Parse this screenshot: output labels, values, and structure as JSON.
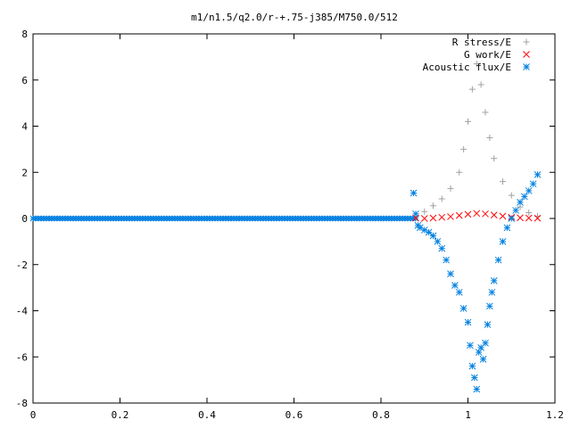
{
  "chart_data": {
    "type": "scatter",
    "title": "m1/n1.5/q2.0/r-+.75-j385/M750.0/512",
    "xlabel": "",
    "ylabel": "",
    "xlim": [
      0,
      1.2
    ],
    "ylim": [
      -8,
      8
    ],
    "x_ticks": [
      "0",
      "0.2",
      "0.4",
      "0.6",
      "0.8",
      "1",
      "1.2"
    ],
    "y_ticks": [
      "8",
      "6",
      "4",
      "2",
      "0",
      "-2",
      "-4",
      "-6",
      "-8"
    ],
    "grid": false,
    "legend_position": "top-right",
    "series": [
      {
        "name": "R stress/E",
        "marker": "plus",
        "color": "#a0a0a0",
        "points": [
          [
            0.88,
            0.1
          ],
          [
            0.9,
            0.3
          ],
          [
            0.92,
            0.55
          ],
          [
            0.94,
            0.85
          ],
          [
            0.96,
            1.3
          ],
          [
            0.98,
            2.0
          ],
          [
            0.99,
            3.0
          ],
          [
            1.0,
            4.2
          ],
          [
            1.01,
            5.6
          ],
          [
            1.02,
            6.7
          ],
          [
            1.03,
            5.8
          ],
          [
            1.04,
            4.6
          ],
          [
            1.05,
            3.5
          ],
          [
            1.06,
            2.6
          ],
          [
            1.08,
            1.6
          ],
          [
            1.1,
            1.0
          ],
          [
            1.12,
            0.5
          ],
          [
            1.14,
            0.25
          ],
          [
            1.16,
            0.1
          ]
        ]
      },
      {
        "name": "G work/E",
        "marker": "cross",
        "color": "#ff0000",
        "points": [
          [
            0.88,
            0.02
          ],
          [
            0.9,
            0.0
          ],
          [
            0.92,
            0.02
          ],
          [
            0.94,
            0.05
          ],
          [
            0.96,
            0.08
          ],
          [
            0.98,
            0.13
          ],
          [
            1.0,
            0.18
          ],
          [
            1.02,
            0.22
          ],
          [
            1.04,
            0.2
          ],
          [
            1.06,
            0.15
          ],
          [
            1.08,
            0.1
          ],
          [
            1.1,
            0.05
          ],
          [
            1.12,
            0.03
          ],
          [
            1.14,
            0.02
          ],
          [
            1.16,
            0.01
          ]
        ]
      },
      {
        "name": "Acoustic flux/E",
        "marker": "star",
        "color": "#0080e0",
        "points": [
          [
            0.875,
            1.1
          ],
          [
            0.88,
            0.2
          ],
          [
            0.885,
            -0.3
          ],
          [
            0.89,
            -0.4
          ],
          [
            0.9,
            -0.5
          ],
          [
            0.91,
            -0.6
          ],
          [
            0.92,
            -0.75
          ],
          [
            0.93,
            -1.0
          ],
          [
            0.94,
            -1.3
          ],
          [
            0.95,
            -1.8
          ],
          [
            0.96,
            -2.4
          ],
          [
            0.97,
            -2.9
          ],
          [
            0.98,
            -3.2
          ],
          [
            0.99,
            -3.9
          ],
          [
            1.0,
            -4.5
          ],
          [
            1.005,
            -5.5
          ],
          [
            1.01,
            -6.4
          ],
          [
            1.015,
            -6.9
          ],
          [
            1.02,
            -7.4
          ],
          [
            1.025,
            -5.8
          ],
          [
            1.03,
            -5.6
          ],
          [
            1.035,
            -6.1
          ],
          [
            1.04,
            -5.4
          ],
          [
            1.045,
            -4.6
          ],
          [
            1.05,
            -3.8
          ],
          [
            1.055,
            -3.2
          ],
          [
            1.06,
            -2.7
          ],
          [
            1.07,
            -1.8
          ],
          [
            1.08,
            -1.0
          ],
          [
            1.09,
            -0.4
          ],
          [
            1.1,
            0.0
          ],
          [
            1.11,
            0.35
          ],
          [
            1.12,
            0.7
          ],
          [
            1.13,
            0.95
          ],
          [
            1.14,
            1.2
          ],
          [
            1.15,
            1.5
          ],
          [
            1.16,
            1.9
          ]
        ]
      }
    ]
  }
}
